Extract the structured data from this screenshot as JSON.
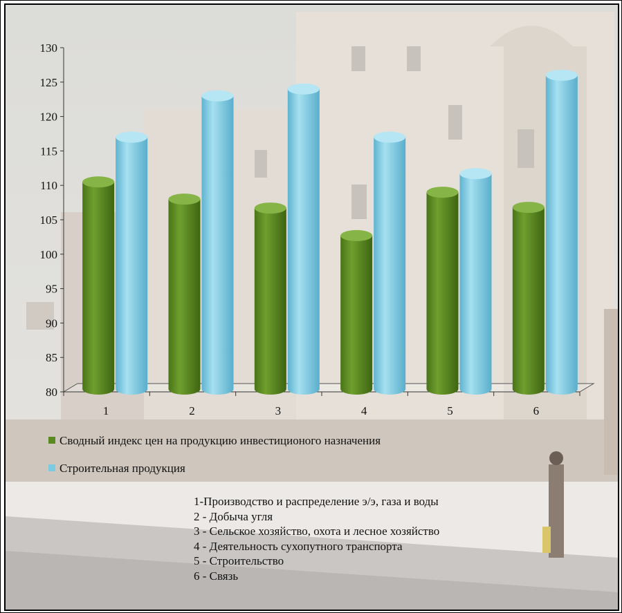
{
  "chart_data": {
    "type": "bar",
    "categories": [
      "1",
      "2",
      "3",
      "4",
      "5",
      "6"
    ],
    "series": [
      {
        "name": "Сводный индекс цен на продукцию инвестиционого назначения",
        "color": "#5a8a1f",
        "values": [
          110.5,
          108,
          106.7,
          102.7,
          109,
          106.8
        ]
      },
      {
        "name": "Строительная продукция",
        "color": "#7ccbe3",
        "values": [
          117,
          123,
          124,
          117,
          111.7,
          126
        ]
      }
    ],
    "ylim": [
      80,
      130
    ],
    "yticks": [
      "80",
      "85",
      "90",
      "95",
      "100",
      "105",
      "110",
      "115",
      "120",
      "125",
      "130"
    ],
    "xlabel": "",
    "ylabel": "",
    "legend_position": "bottom-left",
    "grid": false
  },
  "notes": [
    "1-Производство и распределение э/э, газа и воды",
    "2 - Добыча угля",
    "3 - Сельское хозяйство, охота и лесное хозяйство",
    "4 - Деятельность сухопутного транспорта",
    "5 - Строительство",
    "6 - Связь"
  ]
}
